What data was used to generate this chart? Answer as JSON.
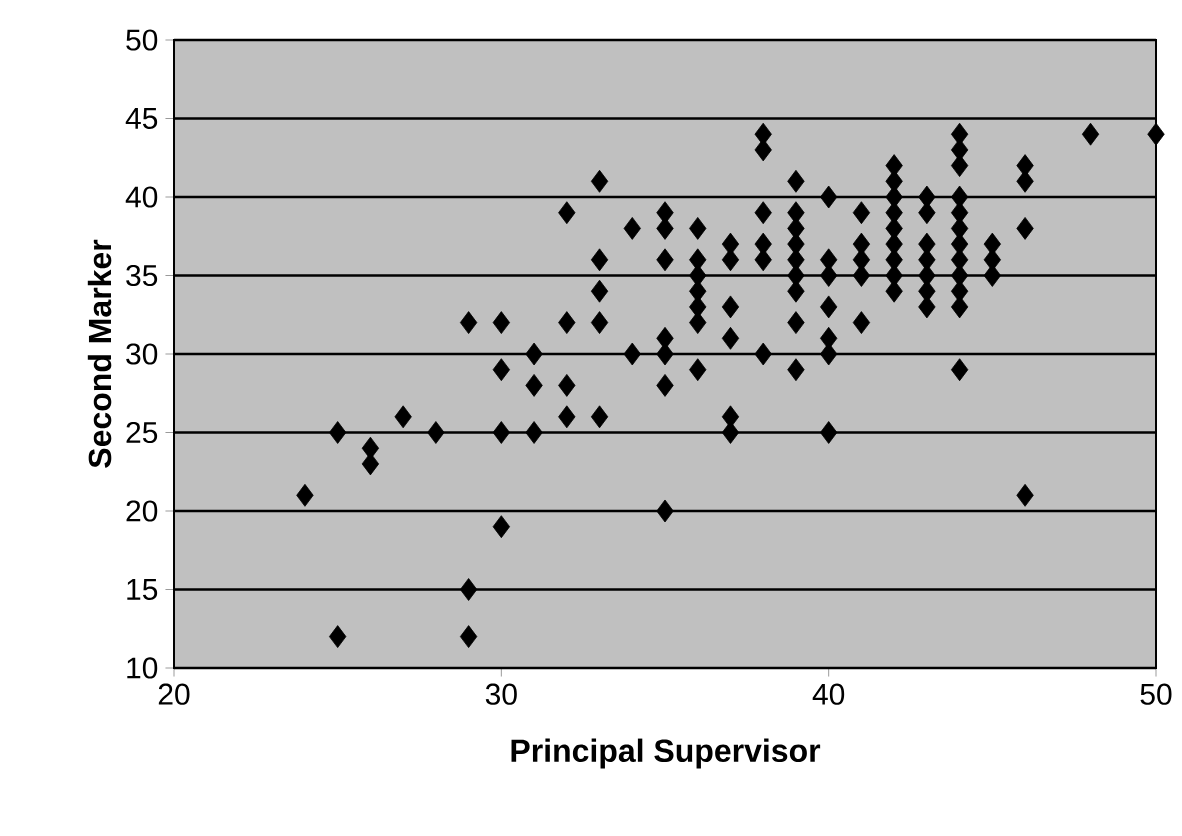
{
  "chart_data": {
    "type": "scatter",
    "xlabel": "Principal Supervisor",
    "ylabel": "Second Marker",
    "xlim": [
      20,
      50
    ],
    "ylim": [
      10,
      50
    ],
    "xticks": [
      20,
      30,
      40,
      50
    ],
    "yticks": [
      10,
      15,
      20,
      25,
      30,
      35,
      40,
      45,
      50
    ],
    "grid": "y",
    "marker": "diamond",
    "series": [
      {
        "color": "#000000",
        "x": [
          24,
          25,
          25,
          26,
          26,
          27,
          28,
          29,
          29,
          29,
          30,
          30,
          30,
          30,
          31,
          31,
          31,
          32,
          32,
          32,
          32,
          33,
          33,
          33,
          33,
          33,
          34,
          34,
          35,
          35,
          35,
          35,
          35,
          35,
          35,
          36,
          36,
          36,
          36,
          36,
          36,
          36,
          37,
          37,
          37,
          37,
          37,
          37,
          38,
          38,
          38,
          38,
          38,
          38,
          39,
          39,
          39,
          39,
          39,
          39,
          39,
          39,
          39,
          40,
          40,
          40,
          40,
          40,
          40,
          40,
          41,
          41,
          41,
          41,
          41,
          42,
          42,
          42,
          42,
          42,
          42,
          42,
          42,
          42,
          43,
          43,
          43,
          43,
          43,
          43,
          43,
          44,
          44,
          44,
          44,
          44,
          44,
          44,
          44,
          44,
          44,
          44,
          44,
          45,
          45,
          45,
          46,
          46,
          46,
          46,
          48,
          50
        ],
        "values": [
          21,
          25,
          12,
          24,
          23,
          26,
          25,
          32,
          15,
          12,
          32,
          29,
          25,
          19,
          30,
          28,
          25,
          39,
          32,
          28,
          26,
          41,
          36,
          34,
          32,
          26,
          38,
          30,
          39,
          38,
          36,
          31,
          30,
          28,
          20,
          38,
          36,
          35,
          34,
          33,
          32,
          29,
          37,
          36,
          33,
          31,
          26,
          25,
          44,
          43,
          39,
          37,
          36,
          30,
          41,
          39,
          38,
          37,
          36,
          35,
          34,
          32,
          29,
          40,
          36,
          35,
          33,
          31,
          30,
          25,
          39,
          37,
          36,
          35,
          32,
          42,
          41,
          40,
          39,
          38,
          37,
          36,
          35,
          34,
          40,
          39,
          37,
          36,
          35,
          34,
          33,
          44,
          43,
          42,
          40,
          39,
          38,
          37,
          36,
          35,
          34,
          33,
          29,
          37,
          36,
          35,
          42,
          41,
          38,
          21,
          44,
          44
        ]
      }
    ]
  }
}
